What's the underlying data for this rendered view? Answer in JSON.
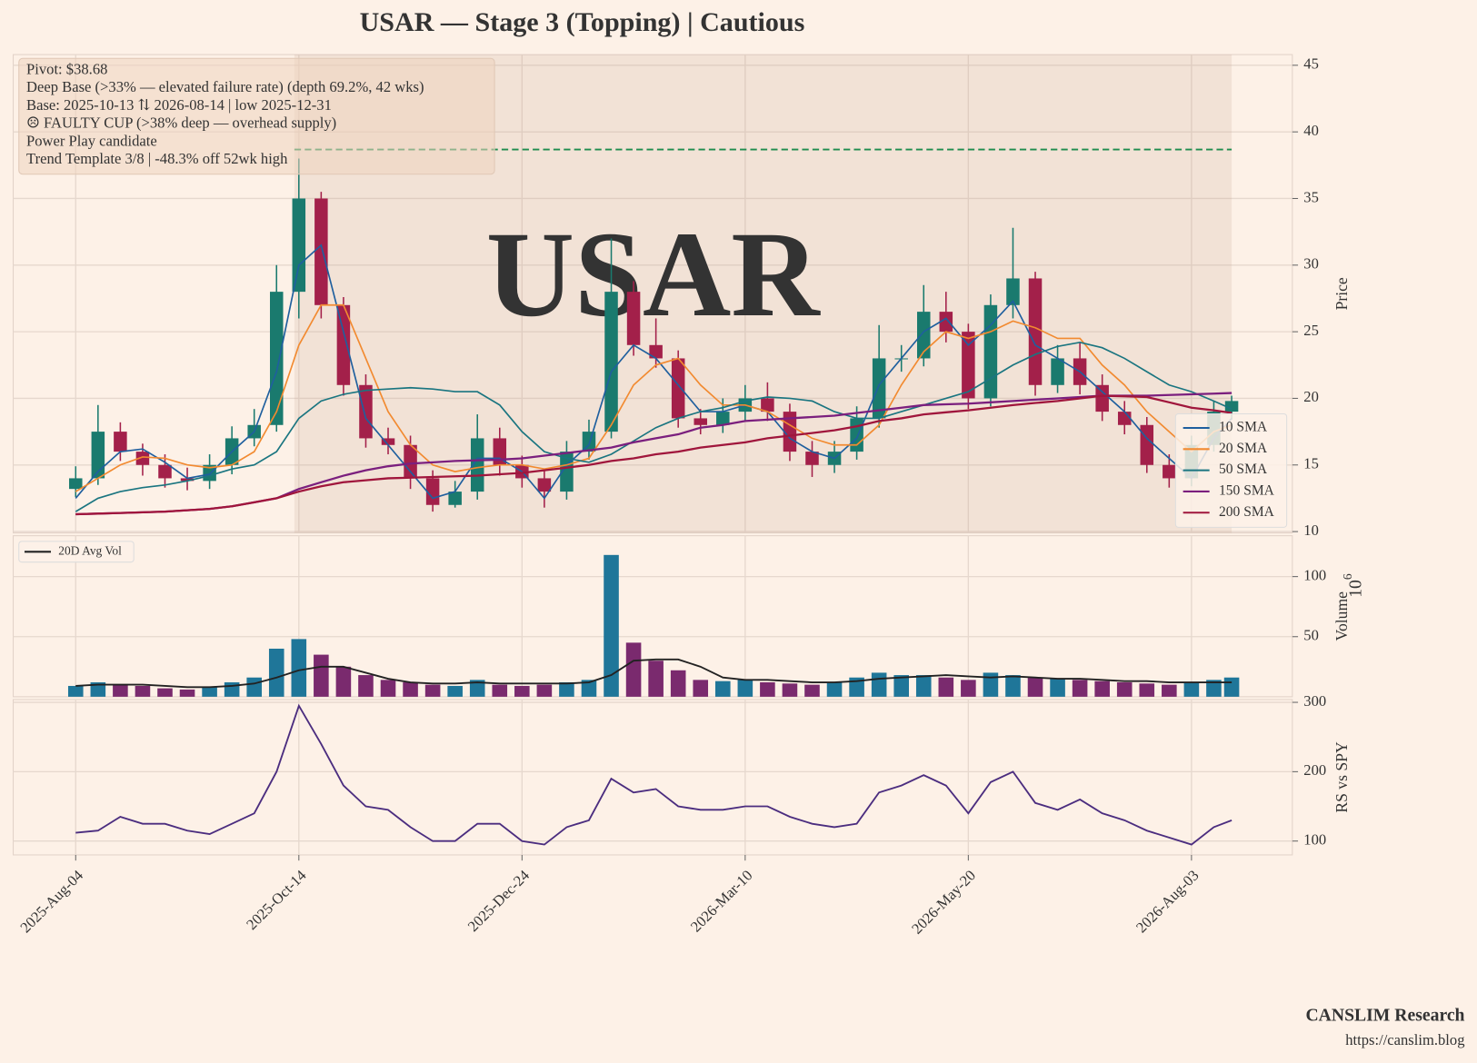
{
  "chart_data": [
    {
      "type": "candlestick",
      "title": "USAR  —  Stage 3 (Topping)  |  Cautious",
      "ylabel": "Price",
      "watermark": "USAR",
      "annotations": [
        "Pivot: $38.68",
        "Deep Base (>33% — elevated failure rate)  (depth 69.2%, 42 wks)",
        "Base: 2025-10-13 ⇅ 2026-08-14  |  low 2025-12-31",
        "☹ FAULTY CUP (>38% deep — overhead supply)",
        "Power Play candidate",
        "Trend Template 3/8  |  -48.3% off 52wk high"
      ],
      "pivot_line": 38.68,
      "pivot_color": "#1e8c4e",
      "base_span": [
        49,
        259
      ],
      "up_color": "#1a7a6e",
      "down_color": "#a3204a",
      "x": [
        0,
        5,
        10,
        15,
        20,
        25,
        30,
        35,
        40,
        45,
        50,
        55,
        60,
        65,
        70,
        75,
        80,
        85,
        90,
        95,
        100,
        105,
        110,
        115,
        120,
        125,
        130,
        135,
        140,
        145,
        150,
        155,
        160,
        165,
        170,
        175,
        180,
        185,
        190,
        195,
        200,
        205,
        210,
        215,
        220,
        225,
        230,
        235,
        240,
        245,
        250,
        255,
        259
      ],
      "open": [
        13.2,
        14.0,
        17.5,
        16.0,
        15.0,
        14.0,
        13.8,
        15.0,
        17.0,
        18.0,
        28.0,
        35.0,
        27.0,
        21.0,
        17.0,
        16.5,
        14.0,
        12.0,
        13.0,
        17.0,
        15.0,
        14.0,
        13.0,
        16.0,
        17.5,
        28.0,
        24.0,
        23.0,
        18.5,
        18.0,
        19.0,
        20.0,
        19.0,
        16.0,
        15.0,
        16.0,
        18.5,
        23.0,
        23.0,
        26.5,
        25.0,
        20.0,
        27.0,
        29.0,
        21.0,
        23.0,
        21.0,
        19.0,
        18.0,
        15.0,
        14.0,
        16.5,
        19.0
      ],
      "high": [
        14.9,
        19.5,
        18.2,
        16.6,
        15.8,
        14.8,
        15.8,
        17.9,
        19.2,
        30.0,
        38.0,
        35.5,
        27.6,
        21.8,
        17.8,
        17.2,
        14.6,
        13.8,
        18.8,
        17.8,
        15.7,
        14.6,
        16.8,
        18.4,
        32.0,
        28.8,
        26.0,
        23.6,
        19.2,
        20.0,
        21.0,
        21.2,
        19.6,
        16.8,
        16.8,
        19.4,
        25.5,
        24.0,
        28.5,
        28.0,
        25.6,
        27.8,
        32.8,
        29.5,
        24.0,
        24.2,
        21.8,
        19.8,
        18.6,
        15.8,
        17.2,
        19.8,
        20.2
      ],
      "low": [
        12.6,
        13.5,
        15.3,
        14.2,
        13.3,
        13.1,
        13.2,
        14.3,
        16.4,
        17.5,
        26.0,
        26.0,
        20.2,
        16.3,
        15.8,
        13.2,
        11.5,
        11.8,
        12.4,
        14.2,
        13.3,
        11.8,
        12.4,
        15.4,
        17.0,
        23.2,
        22.3,
        17.8,
        17.3,
        17.4,
        18.3,
        18.3,
        15.3,
        14.1,
        14.4,
        15.4,
        17.8,
        22.0,
        22.4,
        24.2,
        19.2,
        19.4,
        26.0,
        20.2,
        20.4,
        20.3,
        18.3,
        17.3,
        14.4,
        13.3,
        13.4,
        16.0,
        18.4
      ],
      "close": [
        14.0,
        17.5,
        16.0,
        15.0,
        14.0,
        13.8,
        15.0,
        17.0,
        18.0,
        28.0,
        35.0,
        27.0,
        21.0,
        17.0,
        16.5,
        14.0,
        12.0,
        13.0,
        17.0,
        15.0,
        14.0,
        13.0,
        16.0,
        17.5,
        28.0,
        24.0,
        23.0,
        18.5,
        18.0,
        19.0,
        20.0,
        19.0,
        16.0,
        15.0,
        16.0,
        18.5,
        23.0,
        23.0,
        26.5,
        25.0,
        20.0,
        27.0,
        29.0,
        21.0,
        23.0,
        21.0,
        19.0,
        18.0,
        15.0,
        14.0,
        16.5,
        19.0,
        19.8
      ],
      "series": [
        {
          "name": "10 SMA",
          "color": "#1f5f9e",
          "values": [
            12.5,
            14.5,
            16.0,
            16.2,
            15.2,
            14.0,
            14.3,
            16.0,
            17.5,
            22.0,
            30.0,
            31.5,
            25.0,
            18.5,
            16.5,
            14.5,
            12.5,
            13.0,
            15.5,
            15.5,
            14.5,
            12.5,
            15.0,
            16.5,
            22.0,
            24.0,
            23.0,
            21.0,
            19.0,
            19.0,
            19.5,
            19.0,
            17.0,
            16.0,
            15.5,
            17.0,
            21.0,
            23.0,
            25.0,
            26.0,
            24.0,
            25.5,
            27.3,
            24.0,
            23.0,
            22.0,
            20.5,
            19.0,
            17.0,
            15.5,
            14.0,
            17.0,
            18.5
          ]
        },
        {
          "name": "20 SMA",
          "color": "#f28a30",
          "values": [
            13.0,
            14.0,
            15.0,
            15.6,
            15.5,
            15.0,
            14.8,
            15.0,
            16.0,
            19.0,
            24.0,
            27.0,
            27.0,
            23.0,
            19.0,
            16.5,
            15.0,
            14.5,
            14.8,
            15.0,
            15.0,
            14.7,
            15.0,
            15.5,
            18.0,
            21.0,
            22.5,
            23.0,
            21.0,
            19.5,
            19.5,
            19.0,
            18.0,
            17.0,
            16.5,
            16.5,
            18.0,
            21.0,
            23.5,
            25.0,
            24.5,
            25.0,
            25.8,
            25.3,
            24.5,
            24.5,
            22.5,
            21.0,
            19.0,
            17.5,
            16.0,
            17.5,
            18.0
          ]
        },
        {
          "name": "50 SMA",
          "color": "#1a7580",
          "values": [
            11.5,
            12.5,
            13.0,
            13.3,
            13.5,
            13.8,
            14.2,
            14.7,
            15.0,
            16.0,
            18.5,
            19.8,
            20.3,
            20.6,
            20.7,
            20.8,
            20.7,
            20.5,
            20.5,
            19.5,
            17.5,
            16.0,
            15.5,
            15.2,
            15.8,
            16.8,
            17.8,
            18.5,
            19.0,
            19.3,
            19.8,
            20.1,
            20.0,
            19.8,
            19.0,
            18.5,
            18.5,
            19.0,
            19.5,
            20.0,
            20.5,
            21.5,
            22.5,
            23.3,
            23.9,
            24.2,
            23.8,
            23.0,
            22.0,
            21.0,
            20.5,
            19.8,
            19.2
          ]
        },
        {
          "name": "150 SMA",
          "color": "#7b1f7e",
          "values": [
            11.3,
            11.35,
            11.4,
            11.45,
            11.5,
            11.6,
            11.7,
            11.9,
            12.2,
            12.5,
            13.2,
            13.7,
            14.2,
            14.6,
            14.9,
            15.1,
            15.2,
            15.3,
            15.35,
            15.4,
            15.5,
            15.7,
            15.9,
            16.1,
            16.3,
            16.7,
            17.0,
            17.3,
            17.8,
            18.0,
            18.3,
            18.4,
            18.5,
            18.6,
            18.7,
            18.9,
            19.1,
            19.3,
            19.5,
            19.55,
            19.6,
            19.7,
            19.8,
            19.9,
            20.0,
            20.1,
            20.2,
            20.2,
            20.2,
            20.25,
            20.3,
            20.35,
            20.4
          ]
        },
        {
          "name": "200 SMA",
          "color": "#a0163c",
          "values": [
            11.3,
            11.35,
            11.4,
            11.45,
            11.5,
            11.6,
            11.7,
            11.9,
            12.2,
            12.5,
            13.0,
            13.4,
            13.7,
            13.85,
            14.0,
            14.05,
            14.1,
            14.15,
            14.2,
            14.3,
            14.4,
            14.6,
            14.8,
            15.0,
            15.3,
            15.5,
            15.8,
            16.0,
            16.3,
            16.5,
            16.7,
            17.0,
            17.2,
            17.4,
            17.6,
            17.9,
            18.3,
            18.5,
            18.8,
            18.95,
            19.1,
            19.3,
            19.5,
            19.65,
            19.8,
            20.0,
            20.2,
            20.15,
            20.1,
            19.7,
            19.3,
            19.1,
            18.9
          ]
        }
      ],
      "xlim": [
        -14,
        272.6
      ],
      "ylim": [
        9.9,
        45.8
      ],
      "yticks": [
        10,
        15,
        20,
        25,
        30,
        35,
        40,
        45
      ],
      "grid": true,
      "legend": "lower right"
    },
    {
      "type": "bar",
      "ylabel": "Volume",
      "offset_text": "10",
      "offset_power": "6",
      "up_color": "#1f7699",
      "down_color": "#7a2a6e",
      "x": [
        0,
        5,
        10,
        15,
        20,
        25,
        30,
        35,
        40,
        45,
        50,
        55,
        60,
        65,
        70,
        75,
        80,
        85,
        90,
        95,
        100,
        105,
        110,
        115,
        120,
        125,
        130,
        135,
        140,
        145,
        150,
        155,
        160,
        165,
        170,
        175,
        180,
        185,
        190,
        195,
        200,
        205,
        210,
        215,
        220,
        225,
        230,
        235,
        240,
        245,
        250,
        255,
        259
      ],
      "values": [
        9,
        12,
        10,
        9,
        7,
        6,
        8,
        12,
        16,
        40,
        48,
        35,
        25,
        18,
        14,
        12,
        10,
        9,
        14,
        10,
        9,
        10,
        12,
        14,
        118,
        45,
        30,
        22,
        14,
        13,
        14,
        12,
        11,
        10,
        12,
        16,
        20,
        18,
        18,
        16,
        14,
        20,
        18,
        16,
        15,
        14,
        13,
        12,
        11,
        10,
        12,
        14,
        16
      ],
      "series": [
        {
          "name": "20D Avg Vol",
          "color": "#222222",
          "values": [
            9,
            10,
            10,
            10,
            9,
            8,
            8,
            9,
            11,
            16,
            22,
            25,
            25,
            20,
            15,
            12,
            11,
            11,
            12,
            11,
            11,
            11,
            11,
            12,
            18,
            30,
            31,
            31,
            25,
            16,
            14,
            14,
            13,
            12,
            12,
            13,
            15,
            16,
            17,
            18,
            17,
            16,
            17,
            16,
            15,
            15,
            14,
            13,
            13,
            12,
            12,
            12,
            12
          ]
        }
      ],
      "xlim": [
        -14,
        272.6
      ],
      "ylim": [
        0,
        134
      ],
      "yticks": [
        50,
        100
      ],
      "grid": true,
      "legend": "upper left"
    },
    {
      "type": "line",
      "ylabel": "RS vs SPY",
      "color": "#4b2d7f",
      "x": [
        0,
        5,
        10,
        15,
        20,
        25,
        30,
        35,
        40,
        45,
        50,
        55,
        60,
        65,
        70,
        75,
        80,
        85,
        90,
        95,
        100,
        105,
        110,
        115,
        120,
        125,
        130,
        135,
        140,
        145,
        150,
        155,
        160,
        165,
        170,
        175,
        180,
        185,
        190,
        195,
        200,
        205,
        210,
        215,
        220,
        225,
        230,
        235,
        240,
        245,
        250,
        255,
        259
      ],
      "values": [
        112,
        115,
        135,
        125,
        125,
        115,
        110,
        125,
        140,
        200,
        295,
        240,
        180,
        150,
        145,
        120,
        100,
        100,
        125,
        125,
        100,
        95,
        120,
        130,
        190,
        170,
        175,
        150,
        145,
        145,
        150,
        150,
        135,
        125,
        120,
        125,
        170,
        180,
        195,
        180,
        140,
        185,
        200,
        155,
        145,
        160,
        140,
        130,
        115,
        105,
        95,
        120,
        130
      ],
      "xlim": [
        -14,
        272.6
      ],
      "ylim": [
        80,
        304
      ],
      "yticks": [
        100,
        200,
        300
      ],
      "xticks": [
        {
          "value": 0,
          "label": "2025-Aug-04"
        },
        {
          "value": 50,
          "label": "2025-Oct-14"
        },
        {
          "value": 100,
          "label": "2025-Dec-24"
        },
        {
          "value": 150,
          "label": "2026-Mar-10"
        },
        {
          "value": 200,
          "label": "2026-May-20"
        },
        {
          "value": 250,
          "label": "2026-Aug-03"
        }
      ],
      "grid": true
    }
  ],
  "footer": {
    "title": "CANSLIM Research",
    "url": "https://canslim.blog"
  }
}
